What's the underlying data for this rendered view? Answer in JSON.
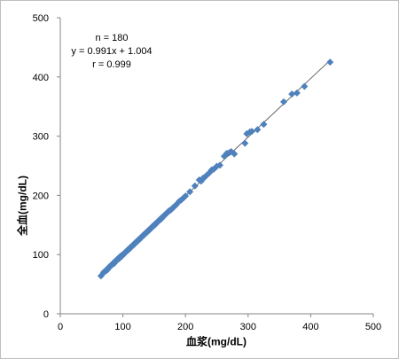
{
  "chart_data": {
    "type": "scatter",
    "title": "",
    "xlabel": "血浆(mg/dL)",
    "ylabel": "全血(mg/dL)",
    "xlim": [
      0,
      500
    ],
    "ylim": [
      0,
      500
    ],
    "x_ticks": [
      "0",
      "100",
      "200",
      "300",
      "400",
      "500"
    ],
    "y_ticks": [
      "0",
      "100",
      "200",
      "300",
      "400",
      "500"
    ],
    "grid": false,
    "legend": "none",
    "annotation": [
      "n = 180",
      "y = 0.991x + 1.004",
      "r = 0.999"
    ],
    "trendline": {
      "slope": 0.991,
      "intercept": 1.004,
      "x_range": [
        65,
        431
      ]
    },
    "marker_color": "#4f81bd",
    "trendline_color": "#404040",
    "series": [
      {
        "x": [
          65,
          69,
          72,
          74,
          76,
          78,
          80,
          81,
          83,
          84,
          85,
          86,
          87,
          88,
          89,
          90,
          91,
          92,
          93,
          94,
          95,
          96,
          97,
          98,
          99,
          100,
          101,
          102,
          103,
          104,
          105,
          106,
          107,
          108,
          109,
          110,
          111,
          112,
          113,
          114,
          115,
          116,
          117,
          118,
          119,
          120,
          121,
          122,
          123,
          124,
          125,
          126,
          127,
          128,
          129,
          130,
          131,
          132,
          133,
          134,
          135,
          136,
          137,
          138,
          139,
          140,
          141,
          142,
          143,
          144,
          145,
          146,
          147,
          148,
          149,
          150,
          151,
          152,
          153,
          154,
          155,
          156,
          157,
          158,
          159,
          160,
          161,
          162,
          163,
          164,
          165,
          166,
          167,
          168,
          169,
          170,
          171,
          172,
          173,
          174,
          176,
          178,
          180,
          182,
          185,
          190,
          193,
          197,
          200,
          207,
          215,
          222,
          225,
          228,
          230,
          233,
          238,
          242,
          245,
          250,
          255,
          262,
          266,
          270,
          273,
          278,
          295,
          298,
          303,
          306,
          315,
          325,
          357,
          370,
          378,
          390,
          431,
          70,
          75,
          79,
          82,
          86,
          88,
          90,
          92,
          94,
          96,
          98,
          100,
          102,
          104,
          106,
          108,
          110,
          112,
          114,
          116,
          118,
          120,
          122,
          124,
          126,
          128,
          130,
          132,
          134,
          136,
          138,
          140,
          142,
          144,
          146,
          148,
          150,
          152,
          154,
          156,
          158,
          160,
          162
        ],
        "y": [
          64,
          69,
          72,
          74,
          77,
          79,
          81,
          82,
          83,
          85,
          86,
          87,
          87,
          89,
          90,
          91,
          92,
          92,
          94,
          95,
          95,
          96,
          98,
          98,
          99,
          100,
          101,
          102,
          103,
          104,
          105,
          106,
          107,
          108,
          109,
          110,
          111,
          112,
          113,
          114,
          115,
          116,
          117,
          118,
          119,
          120,
          121,
          122,
          123,
          124,
          125,
          126,
          127,
          128,
          129,
          130,
          131,
          132,
          133,
          134,
          135,
          136,
          137,
          138,
          139,
          140,
          141,
          142,
          143,
          144,
          145,
          146,
          147,
          148,
          149,
          150,
          151,
          152,
          153,
          154,
          155,
          156,
          157,
          158,
          159,
          160,
          161,
          162,
          163,
          164,
          165,
          166,
          167,
          168,
          169,
          170,
          171,
          172,
          173,
          174,
          175,
          177,
          179,
          181,
          184,
          190,
          192,
          196,
          199,
          206,
          216,
          226,
          224,
          229,
          230,
          233,
          238,
          243,
          244,
          249,
          251,
          266,
          271,
          272,
          274,
          270,
          288,
          304,
          307,
          308,
          311,
          320,
          358,
          371,
          373,
          384,
          425,
          71,
          74,
          79,
          82,
          85,
          88,
          90,
          93,
          93,
          96,
          97,
          100,
          101,
          104,
          106,
          107,
          110,
          111,
          114,
          116,
          117,
          120,
          122,
          123,
          126,
          127,
          130,
          132,
          133,
          136,
          138,
          139,
          142,
          143,
          146,
          148,
          149,
          152,
          153,
          156,
          158,
          159,
          161
        ]
      }
    ]
  }
}
